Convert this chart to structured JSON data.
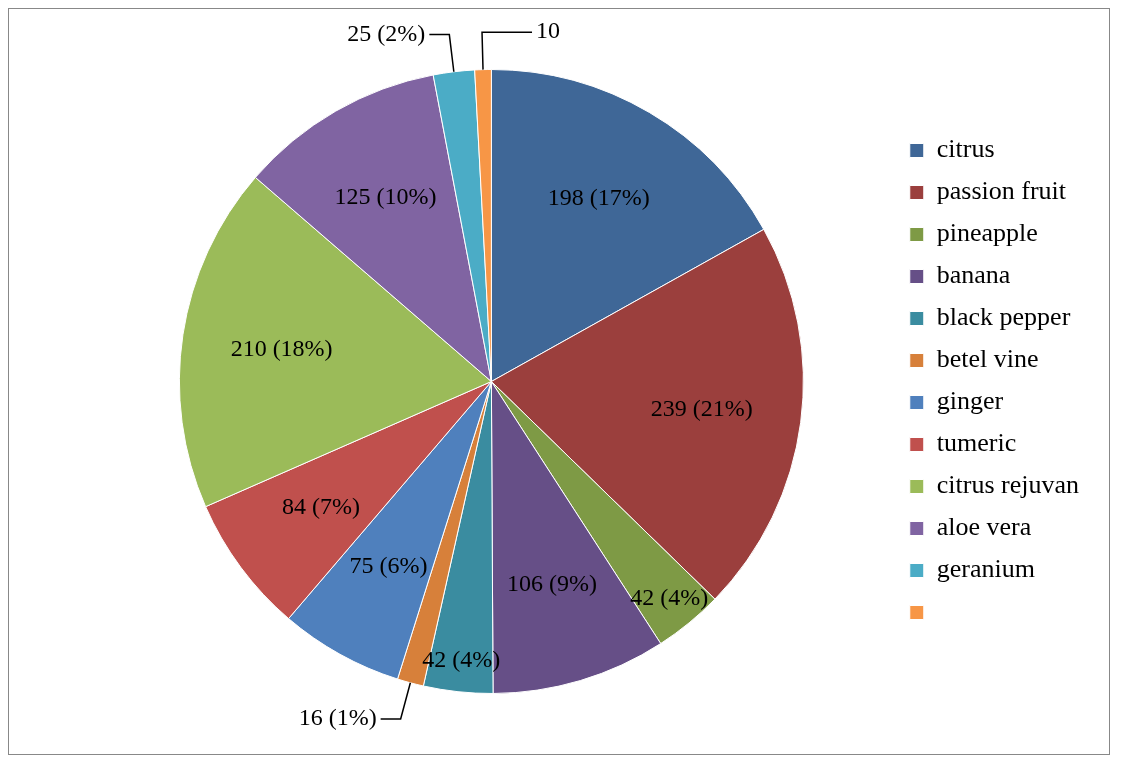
{
  "chart_data": {
    "type": "pie",
    "categories": [
      "citrus",
      "passion fruit",
      "pineapple",
      "banana",
      "black pepper",
      "betel vine",
      "ginger",
      "tumeric",
      "citrus rejuvan",
      "aloe vera",
      "geranium",
      null
    ],
    "values": [
      198,
      239,
      42,
      106,
      42,
      16,
      75,
      84,
      210,
      125,
      25,
      10
    ],
    "colors": [
      "#3f6797",
      "#9b3f3d",
      "#7e9a45",
      "#664f87",
      "#3a8ca0",
      "#d7803a",
      "#4f80bd",
      "#c0504d",
      "#9bbb59",
      "#8064a2",
      "#4bacc6",
      "#f79646"
    ],
    "value_labels": [
      "198 (17%)",
      "239 (21%)",
      "42 (4%)",
      "106 (9%)",
      "42 (4%)",
      "16 (1%)",
      "75 (6%)",
      "84 (7%)",
      "210 (18%)",
      "125 (10%)",
      "25 (2%)",
      "10"
    ],
    "legend": "right"
  }
}
